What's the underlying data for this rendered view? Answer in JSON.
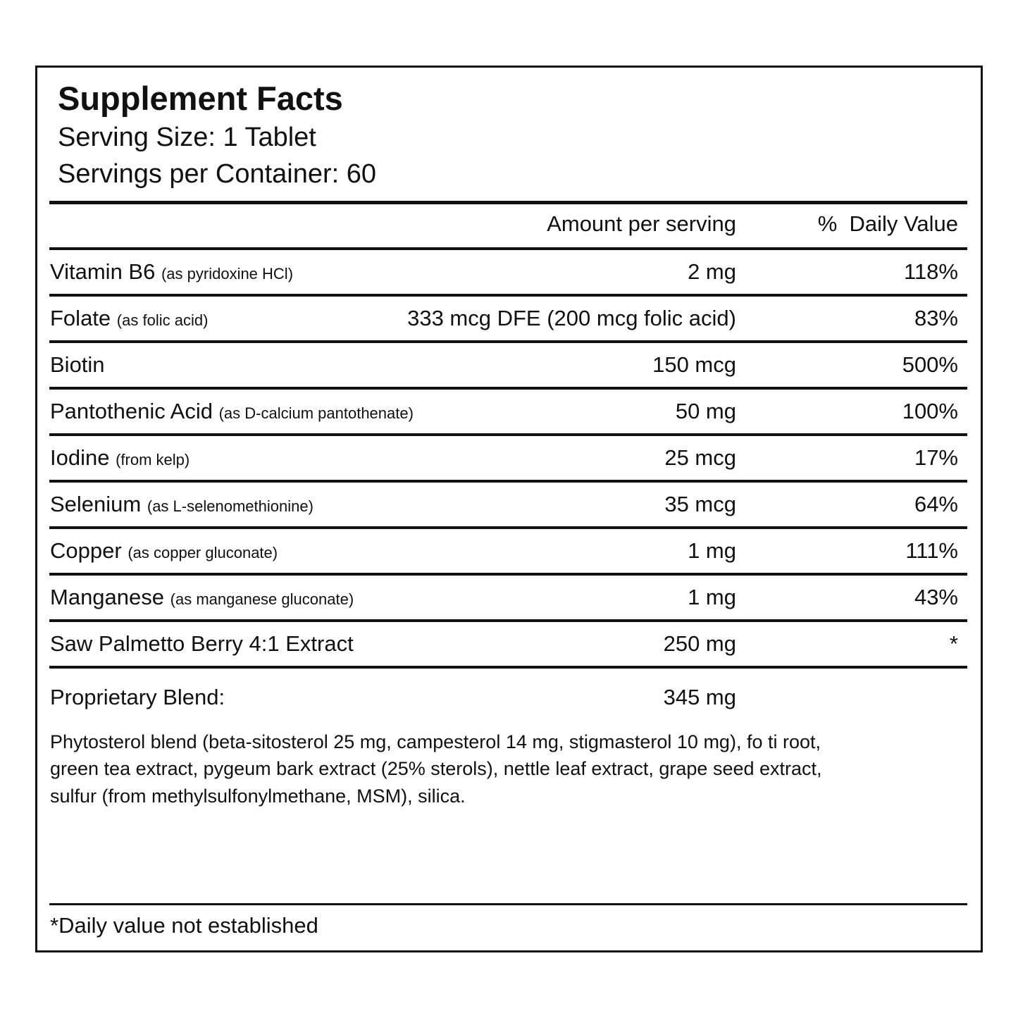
{
  "title": "Supplement Facts",
  "serving_size": "Serving Size: 1 Tablet",
  "servings_per_container": "Servings per Container: 60",
  "header": {
    "amount": "Amount per serving",
    "daily_value": "%  Daily Value"
  },
  "rows": [
    {
      "name": "Vitamin B6",
      "note": "(as pyridoxine HCl)",
      "amount": "2 mg",
      "dv": "118%"
    },
    {
      "name": "Folate",
      "note": "(as folic acid)",
      "amount": "333 mcg DFE (200 mcg folic acid)",
      "dv": "83%"
    },
    {
      "name": "Biotin",
      "amount": "150 mcg",
      "dv": "500%"
    },
    {
      "name": "Pantothenic Acid",
      "note": "(as D-calcium pantothenate)",
      "amount": "50 mg",
      "dv": "100%"
    },
    {
      "name": "Iodine",
      "note": "(from kelp)",
      "amount": "25 mcg",
      "dv": "17%"
    },
    {
      "name": "Selenium",
      "note": "(as L-selenomethionine)",
      "amount": "35 mcg",
      "dv": "64%"
    },
    {
      "name": "Copper",
      "note": "(as copper gluconate)",
      "amount": "1 mg",
      "dv": "111%"
    },
    {
      "name": "Manganese",
      "note": "(as manganese gluconate)",
      "amount": "1 mg",
      "dv": "43%"
    },
    {
      "name": "Saw Palmetto Berry 4:1 Extract",
      "amount": "250 mg",
      "dv": "*"
    }
  ],
  "blend": {
    "name": "Proprietary Blend:",
    "amount": "345 mg",
    "ingredients": [
      "Phytosterol blend (beta-sitosterol 25 mg, campesterol 14 mg, stigmasterol 10 mg), fo ti root,",
      "green tea extract, pygeum bark extract (25% sterols), nettle leaf extract, grape seed extract,",
      "sulfur (from methylsulfonylmethane, MSM), silica."
    ]
  },
  "footnote": "*Daily value not established"
}
